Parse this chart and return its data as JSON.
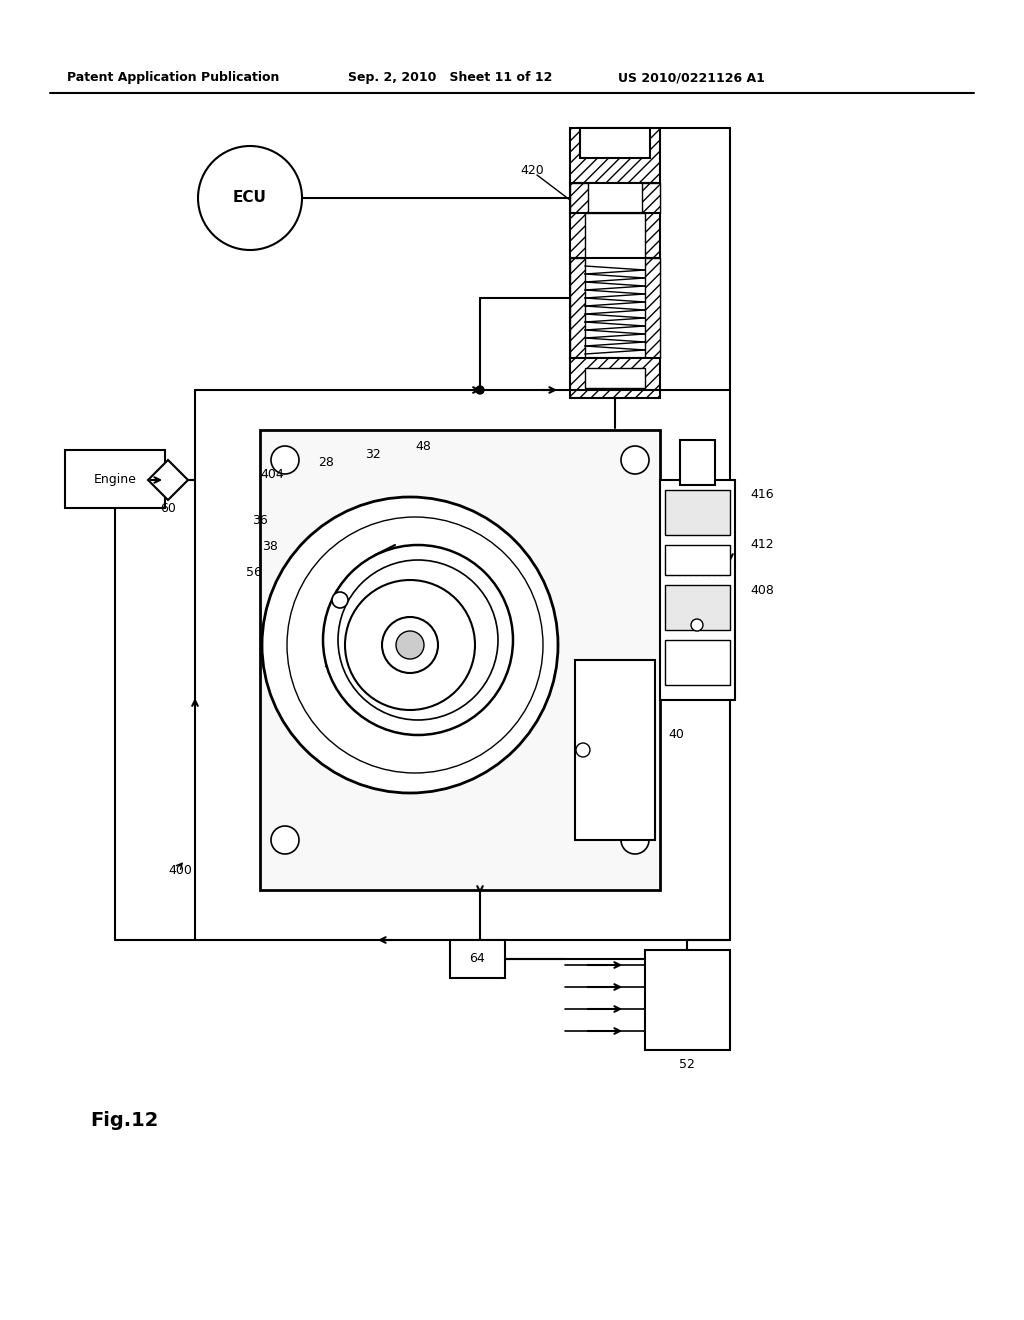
{
  "header_left": "Patent Application Publication",
  "header_mid": "Sep. 2, 2010   Sheet 11 of 12",
  "header_right": "US 2010/0221126 A1",
  "fig_label": "Fig. 12",
  "background_color": "#ffffff"
}
